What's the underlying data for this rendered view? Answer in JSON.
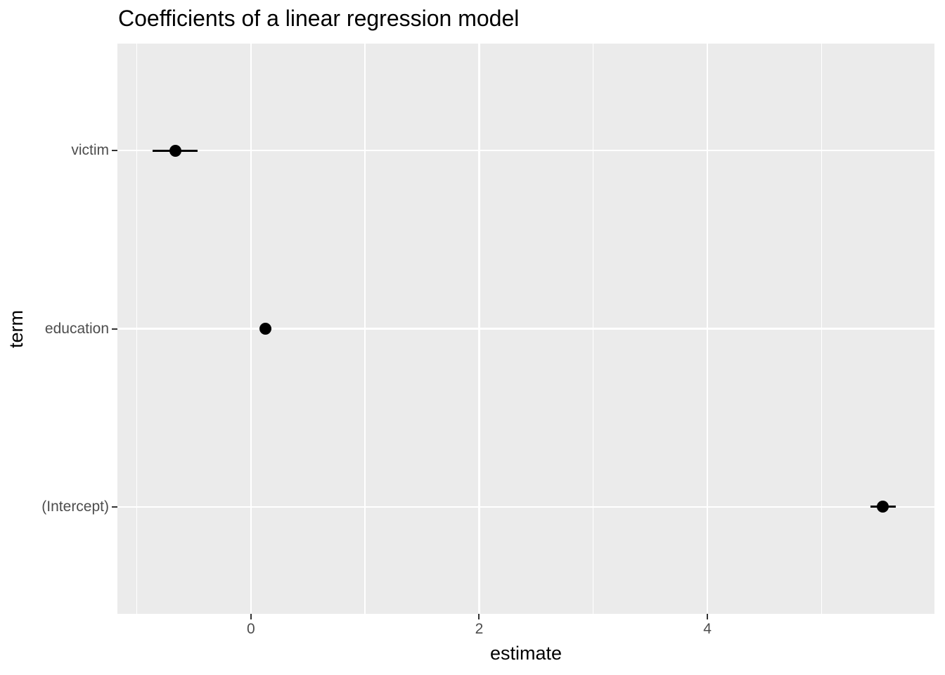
{
  "chart_data": {
    "type": "pointrange",
    "title": "Coefficients of a linear regression model",
    "xlabel": "estimate",
    "ylabel": "term",
    "categories": [
      "(Intercept)",
      "education",
      "victim"
    ],
    "points": [
      {
        "term": "victim",
        "estimate": -0.66,
        "conf_low": -0.86,
        "conf_high": -0.47
      },
      {
        "term": "education",
        "estimate": 0.13,
        "conf_low": 0.08,
        "conf_high": 0.18
      },
      {
        "term": "(Intercept)",
        "estimate": 5.54,
        "conf_low": 5.43,
        "conf_high": 5.65
      }
    ],
    "x_major_ticks": [
      0,
      2,
      4
    ],
    "x_tick_labels": [
      "0",
      "2",
      "4"
    ],
    "x_minor_ticks": [
      -1,
      1,
      3,
      5
    ],
    "xlim": [
      -1.17,
      5.99
    ],
    "grid": true,
    "legend_position": "none",
    "colors": {
      "panel_bg": "#ebebeb",
      "grid": "#ffffff",
      "point": "#000000",
      "axis_text": "#4d4d4d",
      "tick_mark": "#333333",
      "title_text": "#000000",
      "background": "#ffffff"
    }
  }
}
